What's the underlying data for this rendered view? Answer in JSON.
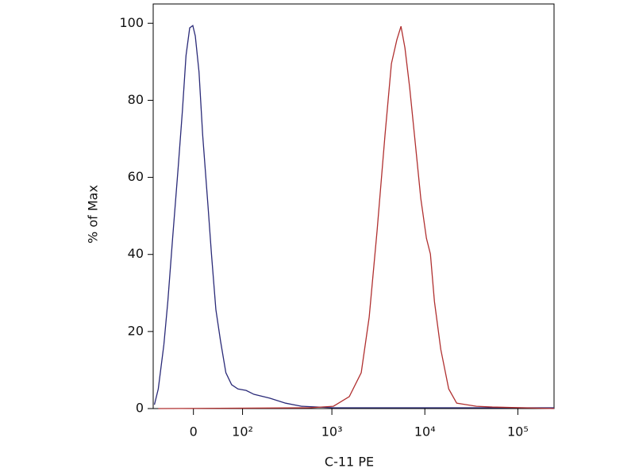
{
  "chart_data": {
    "type": "line",
    "xlabel": "C-11 PE",
    "ylabel": "% of Max",
    "xscale": "biexponential",
    "xlim": [
      -76,
      245000
    ],
    "ylim": [
      0,
      105
    ],
    "xticks": [
      0,
      {
        "value": 100,
        "label": "10²"
      },
      {
        "value": 1000,
        "label": "10³"
      },
      {
        "value": 10000,
        "label": "10⁴"
      },
      {
        "value": 100000,
        "label": "10⁵"
      }
    ],
    "yticks": [
      0,
      20,
      40,
      60,
      80,
      100
    ],
    "series": [
      {
        "color": "#2a2a78",
        "x": [
          -73,
          -64,
          -52,
          -44,
          -35,
          -25,
          -18,
          -12,
          -6,
          -1,
          3,
          9,
          15,
          24,
          30,
          38,
          47,
          58,
          71,
          87,
          111,
          138,
          210,
          315,
          471,
          1039,
          245000
        ],
        "values": [
          1.0,
          5.1,
          16.5,
          27.8,
          44.2,
          62.8,
          77.2,
          91.6,
          98.8,
          99.4,
          96.7,
          87.4,
          71,
          52.5,
          40.1,
          25.7,
          17.5,
          9.3,
          6.2,
          5.1,
          4.7,
          3.7,
          2.7,
          1.4,
          0.6,
          0.2,
          0.2
        ]
      },
      {
        "color": "#b03030",
        "x": [
          -64,
          574,
          1039,
          1540,
          2070,
          2520,
          3070,
          3730,
          4370,
          5000,
          5540,
          6110,
          6870,
          7890,
          9050,
          10400,
          11480,
          12680,
          14830,
          18060,
          22000,
          35900,
          53200,
          245000
        ],
        "values": [
          0,
          0.2,
          0.6,
          3.1,
          9.3,
          23.7,
          46.3,
          71,
          89.5,
          95.7,
          99.2,
          93.6,
          83.3,
          68.9,
          54.5,
          44.2,
          40.1,
          27.8,
          15.4,
          5.1,
          1.4,
          0.6,
          0.4,
          0
        ]
      }
    ]
  }
}
